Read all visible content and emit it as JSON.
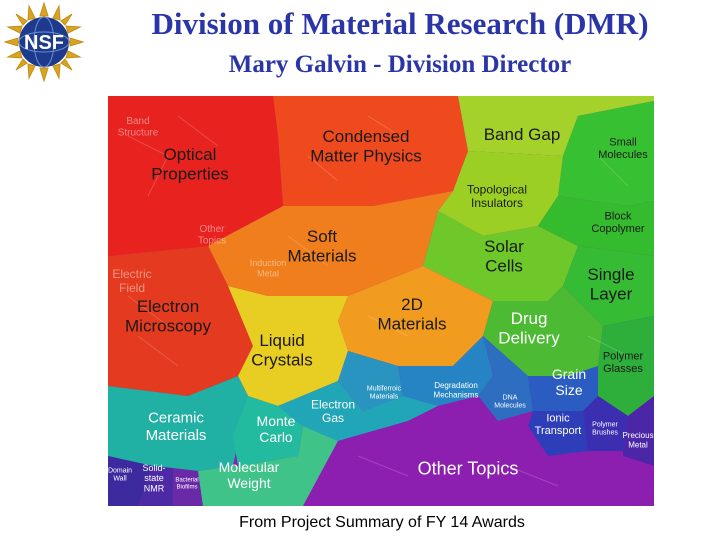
{
  "header": {
    "title": "Division of Material Research (DMR)",
    "subtitle": "Mary Galvin - Division Director",
    "logo_text": "NSF"
  },
  "caption": "From Project Summary of FY 14  Awards",
  "topics": [
    {
      "lines": [
        "Optical",
        "Properties"
      ],
      "color": "#e8231f"
    },
    {
      "lines": [
        "Condensed",
        "Matter Physics"
      ],
      "color": "#ef4a1e"
    },
    {
      "lines": [
        "Band Gap"
      ],
      "color": "#a5d22a"
    },
    {
      "lines": [
        "Small",
        "Molecules"
      ],
      "color": "#37c132"
    },
    {
      "lines": [
        "Topological",
        "Insulators"
      ],
      "color": "#9ccf24"
    },
    {
      "lines": [
        "Block",
        "Copolymer"
      ],
      "color": "#34bb2e"
    },
    {
      "lines": [
        "Soft",
        "Materials"
      ],
      "color": "#f07e1c"
    },
    {
      "lines": [
        "Solar",
        "Cells"
      ],
      "color": "#6ec82a"
    },
    {
      "lines": [
        "Single",
        "Layer"
      ],
      "color": "#36bb34"
    },
    {
      "lines": [
        "Electron",
        "Microscopy"
      ],
      "color": "#e43a1f"
    },
    {
      "lines": [
        "2D",
        "Materials"
      ],
      "color": "#f19c1e"
    },
    {
      "lines": [
        "Drug",
        "Delivery"
      ],
      "color": "#4cba32"
    },
    {
      "lines": [
        "Polymer",
        "Glasses"
      ],
      "color": "#2eae3a"
    },
    {
      "lines": [
        "Liquid",
        "Crystals"
      ],
      "color": "#e8cd22"
    },
    {
      "lines": [
        "Multiferroic",
        "Materials"
      ],
      "color": "#2a94c0"
    },
    {
      "lines": [
        "Degradation",
        "Mechanisms"
      ],
      "color": "#2683c4"
    },
    {
      "lines": [
        "DNA",
        "Molecules"
      ],
      "color": "#2d6ec0"
    },
    {
      "lines": [
        "Grain",
        "Size"
      ],
      "color": "#2a5cc2"
    },
    {
      "lines": [
        "Ceramic",
        "Materials"
      ],
      "color": "#20b0a4"
    },
    {
      "lines": [
        "Monte",
        "Carlo"
      ],
      "color": "#22bba0"
    },
    {
      "lines": [
        "Electron",
        "Gas"
      ],
      "color": "#21a6b8"
    },
    {
      "lines": [
        "Ionic",
        "Transport"
      ],
      "color": "#2d3eb8"
    },
    {
      "lines": [
        "Polymer",
        "Brushes"
      ],
      "color": "#3a2fb0"
    },
    {
      "lines": [
        "Precious",
        "Metal"
      ],
      "color": "#4b27a8"
    },
    {
      "lines": [
        "Domain",
        "Wall"
      ],
      "color": "#3d2a9e"
    },
    {
      "lines": [
        "Solid-",
        "state",
        "NMR"
      ],
      "color": "#4c2aa6"
    },
    {
      "lines": [
        "Bacterial",
        "Biofilms"
      ],
      "color": "#6a2aa8"
    },
    {
      "lines": [
        "Molecular",
        "Weight"
      ],
      "color": "#3fc389"
    },
    {
      "lines": [
        "Other Topics"
      ],
      "color": "#8c1fb0"
    }
  ],
  "faint_labels": [
    [
      "Band",
      "Structure"
    ],
    [
      "Electric",
      "Field"
    ],
    [
      "Other",
      "Topics"
    ],
    [
      "Induction",
      "Metal"
    ]
  ]
}
